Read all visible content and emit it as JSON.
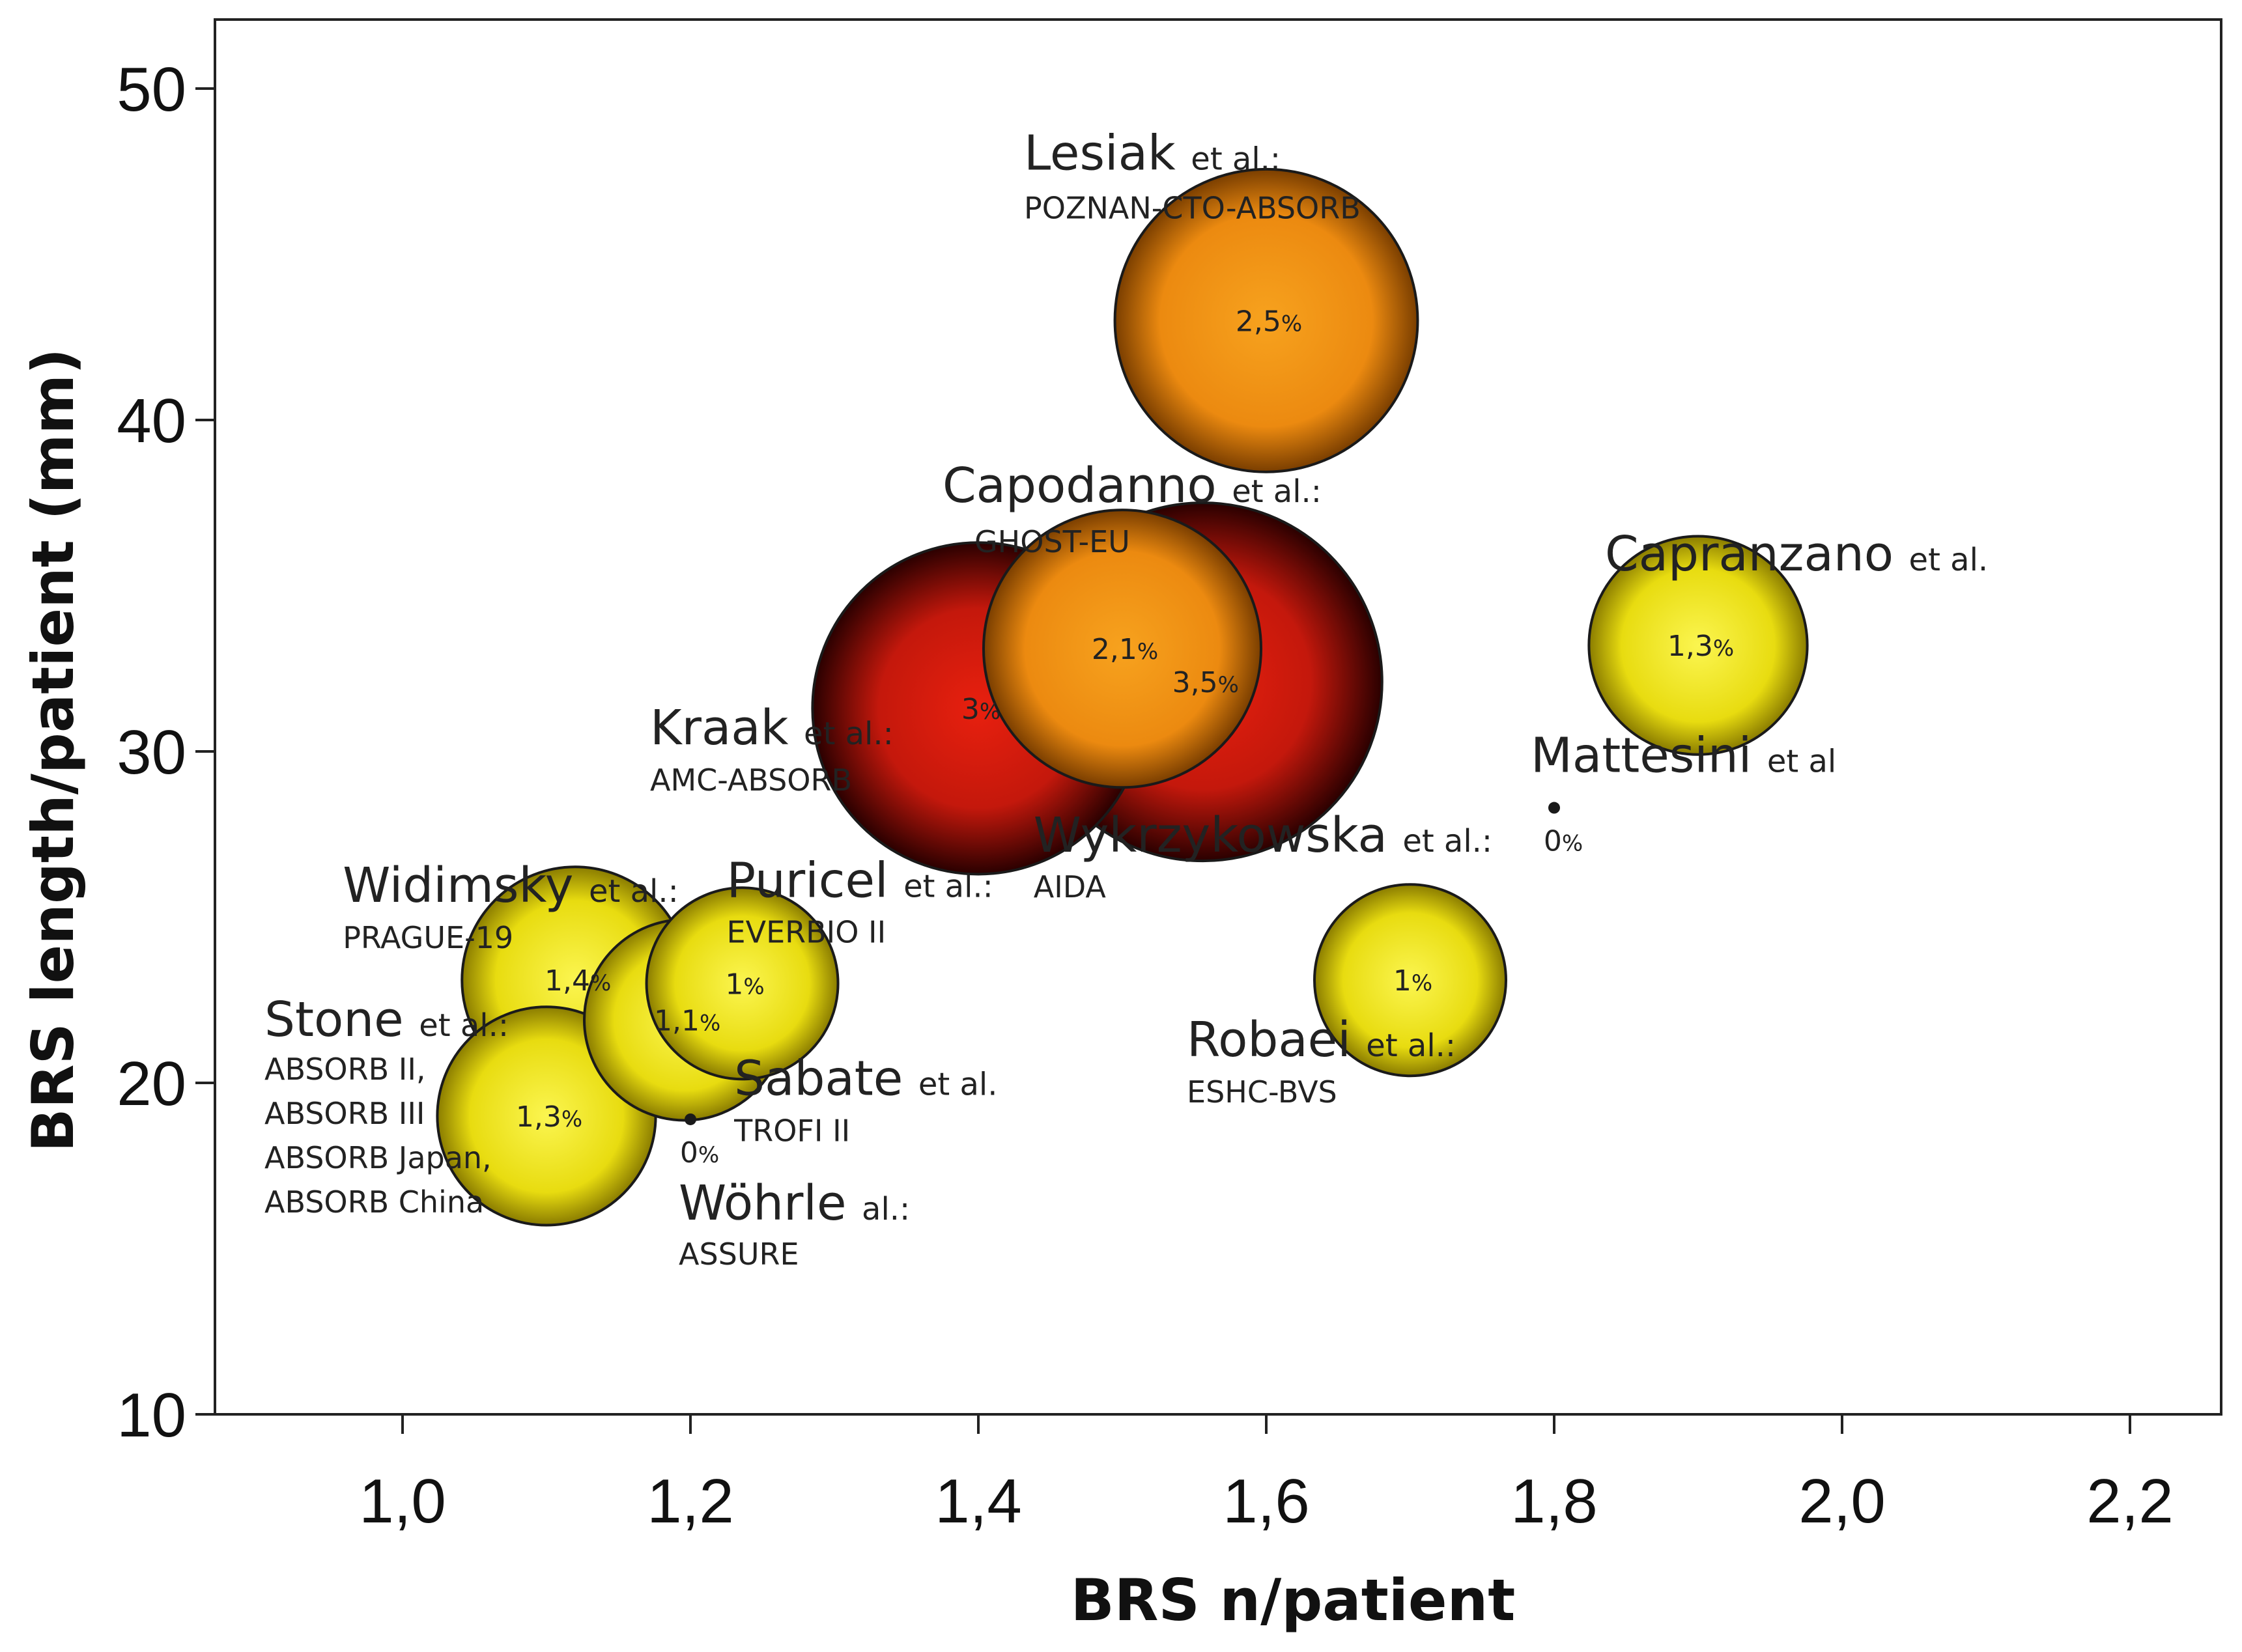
{
  "chart_data": {
    "type": "scatter",
    "subtype": "bubble",
    "title": "",
    "xlabel": "BRS n/patient",
    "ylabel": "BRS length/patient (mm)",
    "xlim": [
      0.87,
      2.27
    ],
    "ylim": [
      9.5,
      52.5
    ],
    "x_ticks": [
      1.0,
      1.2,
      1.4,
      1.6,
      1.8,
      2.0,
      2.2
    ],
    "x_tick_labels": [
      "1,0",
      "1,2",
      "1,4",
      "1,6",
      "1,8",
      "2,0",
      "2,2"
    ],
    "y_ticks": [
      10,
      20,
      30,
      40,
      50
    ],
    "y_tick_labels": [
      "10",
      "20",
      "30",
      "40",
      "50"
    ],
    "colors": {
      "low": "#f2ea1c",
      "medium": "#f0a020",
      "high": "#d81e12",
      "stroke": "#1a1a1a"
    },
    "points": [
      {
        "x": 1.6,
        "y": 43.0,
        "rate": 2.5,
        "rate_label": "2,5",
        "pct_sign": "%",
        "category": "medium",
        "author": "Lesiak",
        "etal": "et al.:",
        "trials": [
          "POZNAN-CTO-ABSORB"
        ]
      },
      {
        "x": 1.556,
        "y": 32.1,
        "rate": 3.5,
        "rate_label": "3,5",
        "pct_sign": "%",
        "category": "high",
        "author": "Wykrzykowska",
        "etal": "et al.:",
        "trials": [
          "AIDA"
        ]
      },
      {
        "x": 1.4,
        "y": 31.3,
        "rate": 3.0,
        "rate_label": "3",
        "pct_sign": "%",
        "category": "high",
        "author": "Kraak",
        "etal": "et al.:",
        "trials": [
          "AMC-ABSORB"
        ]
      },
      {
        "x": 1.5,
        "y": 33.1,
        "rate": 2.1,
        "rate_label": "2,1",
        "pct_sign": "%",
        "category": "medium",
        "author": "Capodanno",
        "etal": "et al.:",
        "trials": [
          "GHOST-EU"
        ]
      },
      {
        "x": 1.9,
        "y": 33.2,
        "rate": 1.3,
        "rate_label": "1,3",
        "pct_sign": "%",
        "category": "low",
        "author": "Capranzano",
        "etal": "et al.",
        "trials": []
      },
      {
        "x": 1.8,
        "y": 28.3,
        "rate": 0,
        "rate_label": "0",
        "pct_sign": "%",
        "category": "none",
        "author": "Mattesini",
        "etal": "et al",
        "trials": []
      },
      {
        "x": 1.7,
        "y": 23.1,
        "rate": 1.0,
        "rate_label": "1",
        "pct_sign": "%",
        "category": "low",
        "author": "Robaei",
        "etal": "et al.:",
        "trials": [
          "ESHC-BVS"
        ]
      },
      {
        "x": 1.12,
        "y": 23.1,
        "rate": 1.4,
        "rate_label": "1,4",
        "pct_sign": "%",
        "category": "low",
        "author": "Widimsky",
        "etal": "et al.:",
        "trials": [
          "PRAGUE-19"
        ]
      },
      {
        "x": 1.236,
        "y": 23.0,
        "rate": 1.0,
        "rate_label": "1",
        "pct_sign": "%",
        "category": "low",
        "author": "Puricel",
        "etal": "et al.:",
        "trials": [
          "EVERBIO II"
        ]
      },
      {
        "x": 1.196,
        "y": 21.9,
        "rate": 1.1,
        "rate_label": "1,1",
        "pct_sign": "%",
        "category": "low",
        "author": "Sabate",
        "etal": "et al.",
        "trials": [
          "TROFI II"
        ]
      },
      {
        "x": 1.1,
        "y": 19.0,
        "rate": 1.3,
        "rate_label": "1,3",
        "pct_sign": "%",
        "category": "low",
        "author": "Stone",
        "etal": "et al.:",
        "trials": [
          "ABSORB II,",
          "ABSORB III",
          "ABSORB Japan,",
          "ABSORB China"
        ]
      },
      {
        "x": 1.2,
        "y": 18.9,
        "rate": 0,
        "rate_label": "0",
        "pct_sign": "%",
        "category": "none",
        "author": "Wöhrle",
        "etal": "al.:",
        "trials": [
          "ASSURE"
        ]
      }
    ]
  }
}
